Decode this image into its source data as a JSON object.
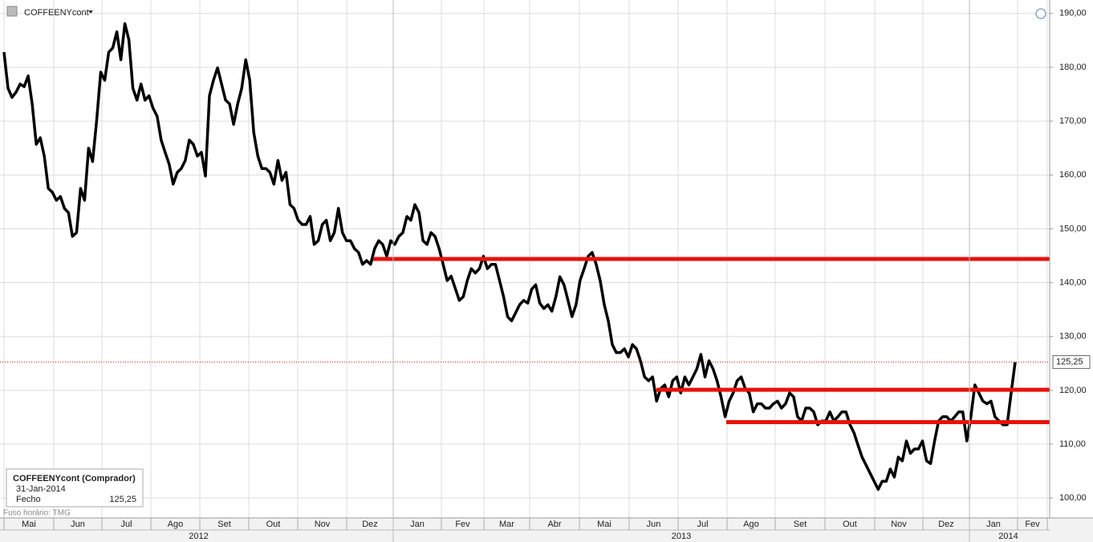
{
  "chart_data": {
    "type": "line",
    "title": "COFFEENYcont",
    "series": [
      {
        "name": "COFFEENYcont",
        "color": "#000000",
        "values": [
          182.8,
          176.1,
          174.4,
          175.4,
          176.9,
          176.4,
          178.4,
          173.2,
          165.7,
          166.9,
          163.5,
          157.5,
          156.8,
          155.3,
          156.0,
          153.8,
          153.0,
          148.6,
          149.3,
          157.5,
          155.3,
          165.0,
          162.5,
          170.2,
          179.1,
          177.6,
          182.8,
          183.6,
          186.6,
          181.4,
          188.1,
          185.1,
          176.1,
          173.9,
          176.9,
          173.9,
          174.7,
          172.4,
          170.9,
          166.5,
          164.2,
          162.0,
          158.3,
          160.5,
          161.2,
          162.7,
          166.5,
          165.7,
          163.5,
          164.2,
          159.8,
          174.7,
          177.6,
          179.9,
          176.9,
          173.9,
          173.2,
          169.4,
          173.2,
          176.1,
          181.4,
          177.6,
          167.9,
          163.5,
          161.2,
          161.2,
          160.5,
          158.3,
          162.7,
          159.0,
          160.5,
          154.5,
          153.8,
          151.6,
          150.8,
          150.8,
          152.3,
          147.1,
          147.8,
          150.8,
          151.6,
          147.8,
          149.3,
          153.8,
          149.3,
          147.8,
          147.8,
          146.3,
          145.6,
          143.4,
          144.1,
          143.4,
          146.3,
          147.8,
          147.1,
          144.9,
          147.8,
          147.1,
          148.6,
          149.3,
          152.3,
          151.6,
          154.5,
          153.0,
          147.8,
          147.1,
          149.3,
          148.6,
          146.3,
          143.4,
          140.4,
          141.2,
          139.0,
          136.7,
          137.4,
          140.4,
          142.6,
          141.8,
          142.6,
          144.9,
          142.6,
          143.4,
          143.4,
          140.4,
          137.4,
          133.7,
          132.9,
          134.4,
          135.9,
          136.7,
          136.2,
          138.8,
          139.6,
          136.2,
          135.2,
          135.9,
          134.7,
          137.4,
          141.1,
          139.6,
          136.7,
          133.7,
          135.9,
          140.4,
          142.6,
          144.9,
          145.6,
          143.4,
          140.4,
          135.9,
          132.9,
          128.5,
          127.0,
          127.0,
          127.7,
          126.2,
          128.5,
          127.7,
          125.5,
          122.5,
          121.8,
          122.5,
          118.0,
          120.3,
          121.0,
          118.8,
          121.8,
          122.5,
          119.5,
          122.5,
          121.0,
          122.5,
          124.0,
          126.7,
          122.5,
          125.5,
          124.0,
          121.8,
          118.8,
          115.1,
          118.0,
          119.5,
          121.8,
          122.5,
          120.3,
          119.5,
          116.0,
          117.5,
          117.5,
          116.7,
          116.7,
          117.5,
          118.0,
          116.7,
          117.5,
          119.5,
          118.8,
          115.1,
          114.3,
          116.7,
          116.7,
          116.0,
          113.6,
          114.3,
          114.3,
          116.0,
          114.3,
          115.1,
          116.0,
          116.0,
          113.6,
          112.1,
          109.8,
          107.6,
          106.1,
          104.6,
          103.1,
          101.6,
          103.1,
          103.1,
          105.4,
          103.9,
          107.6,
          106.9,
          110.6,
          108.3,
          109.1,
          109.1,
          110.6,
          106.9,
          106.4,
          110.6,
          114.3,
          115.1,
          115.1,
          114.3,
          115.1,
          116.0,
          116.0,
          110.6,
          115.1,
          121.0,
          119.5,
          118.0,
          117.5,
          118.0,
          115.1,
          114.3,
          113.6,
          113.6,
          119.5,
          125.25
        ]
      }
    ],
    "hlines": [
      {
        "value": 144.4,
        "color": "#e8120c"
      },
      {
        "value": 120.1,
        "color": "#e8120c"
      },
      {
        "value": 114.1,
        "color": "#e8120c"
      }
    ],
    "last_price": {
      "value": 125.25,
      "label": "125,25",
      "color": "#e8120c"
    },
    "ylim": [
      96.3,
      192.5
    ],
    "yticks": [
      {
        "value": 100,
        "label": "100,00"
      },
      {
        "value": 110,
        "label": "110,00"
      },
      {
        "value": 120,
        "label": "120,00"
      },
      {
        "value": 130,
        "label": "130,00"
      },
      {
        "value": 140,
        "label": "140,00"
      },
      {
        "value": 150,
        "label": "150,00"
      },
      {
        "value": 160,
        "label": "160,00"
      },
      {
        "value": 170,
        "label": "170,00"
      },
      {
        "value": 180,
        "label": "180,00"
      },
      {
        "value": 190,
        "label": "190,00"
      }
    ],
    "grid": true,
    "x_axis": {
      "months": [
        "Mai",
        "Jun",
        "Jul",
        "Ago",
        "Set",
        "Out",
        "Nov",
        "Dez",
        "Jan",
        "Fev",
        "Mar",
        "Abr",
        "Mai",
        "Jun",
        "Jul",
        "Ago",
        "Set",
        "Out",
        "Nov",
        "Dez",
        "Jan",
        "Fev"
      ],
      "years": [
        "2012",
        "2013",
        "2014"
      ]
    },
    "info": {
      "title": "COFFEENYcont (Comprador)",
      "date": "31-Jan-2014",
      "field": "Fecho",
      "value": "125,25"
    },
    "footer": "Fuso horário: TMG"
  }
}
